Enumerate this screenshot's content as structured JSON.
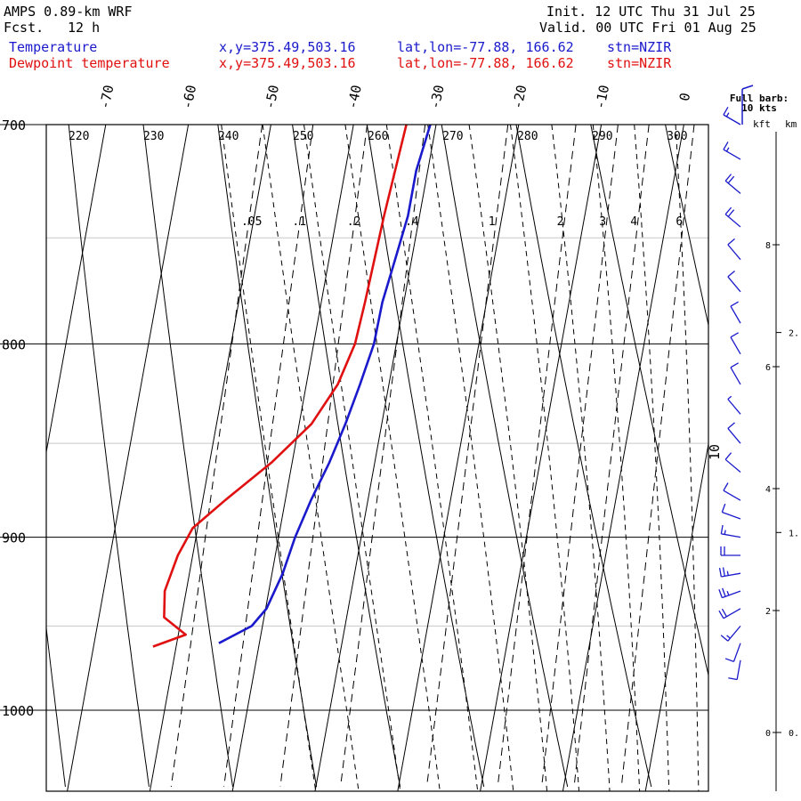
{
  "header": {
    "model": "AMPS 0.89-km WRF",
    "fcst_label": "Fcst.",
    "fcst_value": "12 h",
    "init": "Init. 12 UTC Thu 31 Jul 25",
    "valid": "Valid. 00 UTC Fri 01 Aug 25"
  },
  "legend": [
    {
      "name": "Temperature",
      "xy": "x,y=375.49,503.16",
      "latlon": "lat,lon=-77.88, 166.62",
      "stn": "stn=NZIR",
      "color": "#1a1acc"
    },
    {
      "name": "Dewpoint temperature",
      "xy": "x,y=375.49,503.16",
      "latlon": "lat,lon=-77.88, 166.62",
      "stn": "stn=NZIR",
      "color": "#e01010"
    }
  ],
  "chart_data": {
    "type": "line",
    "pressure_ticks": [
      700,
      800,
      900,
      1000
    ],
    "pressure_tick_labels": [
      "700",
      "800",
      "900",
      "1000"
    ],
    "temp_ticks": [
      -70,
      -60,
      -50,
      -40,
      -30,
      -20,
      -10,
      0
    ],
    "temp_tick_labels": [
      "-70",
      "-60",
      "-50",
      "-40",
      "-30",
      "-20",
      "-10",
      "0"
    ],
    "theta_values": [
      220,
      230,
      240,
      250,
      260,
      270,
      280,
      290,
      300
    ],
    "theta_labels": [
      "220",
      "230",
      "240",
      "250",
      "260",
      "270",
      "280",
      "290",
      "300"
    ],
    "mixing_ratio_values": [
      0.05,
      0.1,
      0.2,
      0.4,
      1,
      2,
      3,
      4,
      6
    ],
    "mixing_ratio_labels": [
      ".05",
      ".1",
      ".2",
      ".4",
      "1",
      "2",
      "3",
      "4",
      "6"
    ],
    "theta_e_label": "10",
    "series": [
      {
        "name": "Temperature",
        "color": "#1a1acc",
        "points": [
          {
            "p": 700,
            "t": -30.7
          },
          {
            "p": 720,
            "t": -31.4
          },
          {
            "p": 740,
            "t": -31.4
          },
          {
            "p": 760,
            "t": -32.0
          },
          {
            "p": 780,
            "t": -32.6
          },
          {
            "p": 800,
            "t": -32.7
          },
          {
            "p": 820,
            "t": -33.5
          },
          {
            "p": 840,
            "t": -34.4
          },
          {
            "p": 860,
            "t": -35.5
          },
          {
            "p": 880,
            "t": -36.9
          },
          {
            "p": 900,
            "t": -38.0
          },
          {
            "p": 920,
            "t": -38.7
          },
          {
            "p": 940,
            "t": -39.9
          },
          {
            "p": 950,
            "t": -41.3
          },
          {
            "p": 960,
            "t": -44.9
          }
        ]
      },
      {
        "name": "Dewpoint temperature",
        "color": "#e01010",
        "points": [
          {
            "p": 700,
            "t": -33.6
          },
          {
            "p": 740,
            "t": -34.3
          },
          {
            "p": 780,
            "t": -34.7
          },
          {
            "p": 800,
            "t": -35.0
          },
          {
            "p": 820,
            "t": -36.2
          },
          {
            "p": 840,
            "t": -38.5
          },
          {
            "p": 860,
            "t": -42.5
          },
          {
            "p": 880,
            "t": -47.3
          },
          {
            "p": 895,
            "t": -50.6
          },
          {
            "p": 910,
            "t": -51.8
          },
          {
            "p": 930,
            "t": -52.6
          },
          {
            "p": 945,
            "t": -52.1
          },
          {
            "p": 955,
            "t": -49.1
          },
          {
            "p": 962,
            "t": -52.8
          }
        ]
      }
    ],
    "wind_panel": {
      "title_line1": "Full barb:",
      "title_line2": "10 kts",
      "kft_label": "kft",
      "km_label": "km",
      "kft_ticks": [
        {
          "alt": 0,
          "label": "0"
        },
        {
          "alt": 2,
          "label": "2"
        },
        {
          "alt": 4,
          "label": "4"
        },
        {
          "alt": 6,
          "label": "6"
        },
        {
          "alt": 8,
          "label": "8"
        }
      ],
      "km_ticks": [
        {
          "alt": 0,
          "label": "0."
        },
        {
          "alt": 1,
          "label": "1."
        },
        {
          "alt": 2,
          "label": "2."
        }
      ],
      "barbs": [
        {
          "p": 700,
          "dir": 300,
          "spd": 15
        },
        {
          "p": 715,
          "dir": 300,
          "spd": 15
        },
        {
          "p": 730,
          "dir": 310,
          "spd": 20
        },
        {
          "p": 745,
          "dir": 310,
          "spd": 20
        },
        {
          "p": 760,
          "dir": 320,
          "spd": 10
        },
        {
          "p": 775,
          "dir": 320,
          "spd": 10
        },
        {
          "p": 790,
          "dir": 330,
          "spd": 10
        },
        {
          "p": 805,
          "dir": 330,
          "spd": 10
        },
        {
          "p": 820,
          "dir": 330,
          "spd": 10
        },
        {
          "p": 835,
          "dir": 320,
          "spd": 5
        },
        {
          "p": 850,
          "dir": 320,
          "spd": 10
        },
        {
          "p": 865,
          "dir": 310,
          "spd": 10
        },
        {
          "p": 880,
          "dir": 300,
          "spd": 10
        },
        {
          "p": 890,
          "dir": 290,
          "spd": 10
        },
        {
          "p": 900,
          "dir": 280,
          "spd": 15
        },
        {
          "p": 910,
          "dir": 270,
          "spd": 20
        },
        {
          "p": 920,
          "dir": 260,
          "spd": 25
        },
        {
          "p": 930,
          "dir": 250,
          "spd": 25
        },
        {
          "p": 940,
          "dir": 240,
          "spd": 20
        },
        {
          "p": 950,
          "dir": 220,
          "spd": 15
        },
        {
          "p": 960,
          "dir": 200,
          "spd": 10
        },
        {
          "p": 970,
          "dir": 190,
          "spd": 10
        }
      ]
    }
  }
}
